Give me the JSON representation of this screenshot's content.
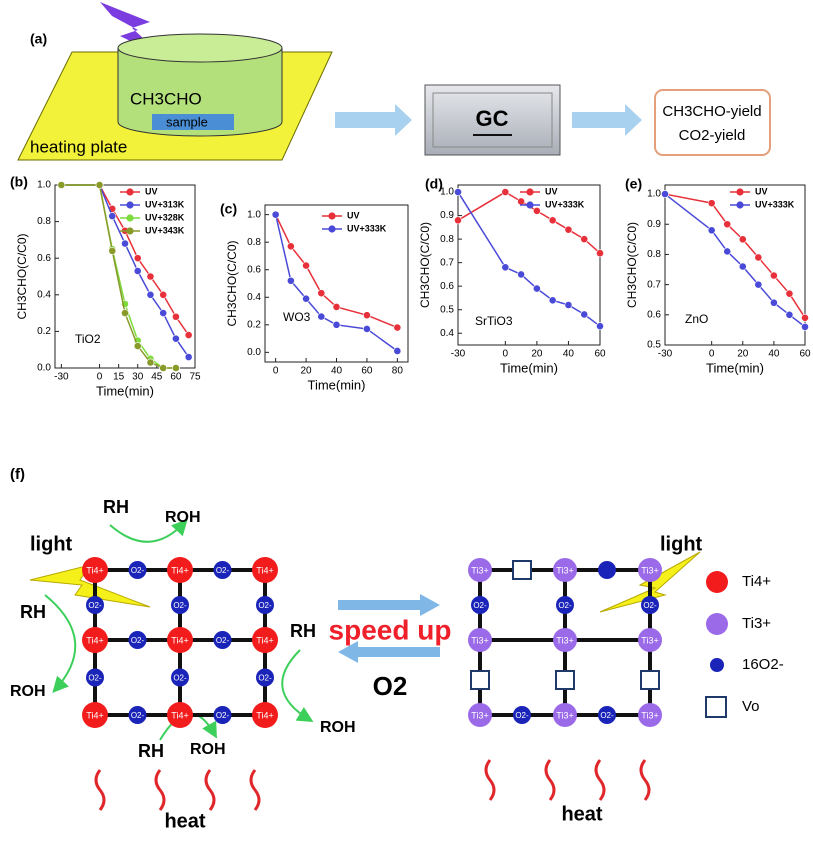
{
  "panel_a": {
    "label": "(a)",
    "reactant": "CH3CHO",
    "sample": "sample",
    "plate": "heating plate",
    "instrument": "GC",
    "outputs": [
      "CH3CHO-yield",
      "CO2-yield"
    ]
  },
  "chart_data": [
    {
      "type": "line",
      "label": "(b)",
      "xlabel": "Time(min)",
      "ylabel": "CH3CHO(C/C0)",
      "annotation": "TiO2",
      "x": [
        -30,
        0,
        10,
        20,
        30,
        40,
        50,
        60,
        70
      ],
      "series": [
        {
          "name": "UV",
          "color": "#e8303a",
          "values": [
            1.0,
            1.0,
            0.87,
            0.75,
            0.6,
            0.5,
            0.4,
            0.28,
            0.18
          ]
        },
        {
          "name": "UV+313K",
          "color": "#4a4ad8",
          "values": [
            1.0,
            1.0,
            0.83,
            0.68,
            0.53,
            0.4,
            0.3,
            0.16,
            0.06
          ]
        },
        {
          "name": "UV+328K",
          "color": "#7ddc3c",
          "values": [
            1.0,
            1.0,
            0.65,
            0.35,
            0.15,
            0.05,
            0.0,
            0.0,
            null
          ]
        },
        {
          "name": "UV+343K",
          "color": "#8a9a2a",
          "values": [
            1.0,
            1.0,
            0.64,
            0.3,
            0.12,
            0.03,
            0.0,
            0.0,
            null
          ]
        }
      ],
      "xlim": [
        -35,
        75
      ],
      "xticks": [
        -30,
        0,
        15,
        30,
        45,
        60,
        75
      ],
      "ylim": [
        0,
        1.0
      ],
      "yticks": [
        {
          "value": 0,
          "label": "0.0"
        },
        {
          "value": 0.2,
          "label": "0.2"
        },
        {
          "value": 0.4,
          "label": "0.4"
        },
        {
          "value": 0.6,
          "label": "0.6"
        },
        {
          "value": 0.8,
          "label": "0.8"
        },
        {
          "value": 1.0,
          "label": "1.0"
        }
      ],
      "legend": "upper right"
    },
    {
      "type": "line",
      "label": "(c)",
      "xlabel": "Time(min)",
      "ylabel": "CH3CHO(C/C0)",
      "annotation": "WO3",
      "x": [
        0,
        10,
        20,
        30,
        40,
        60,
        80
      ],
      "series": [
        {
          "name": "UV",
          "color": "#e8303a",
          "values": [
            1.0,
            0.77,
            0.63,
            0.43,
            0.33,
            0.27,
            0.18
          ]
        },
        {
          "name": "UV+333K",
          "color": "#4a4ad8",
          "values": [
            1.0,
            0.52,
            0.39,
            0.26,
            0.2,
            0.17,
            0.01
          ]
        }
      ],
      "xlim": [
        -7,
        87
      ],
      "xticks": [
        0,
        20,
        40,
        60,
        80
      ],
      "ylim": [
        -0.07,
        1.07
      ],
      "yticks": [
        {
          "value": 0,
          "label": "0.0"
        },
        {
          "value": 0.2,
          "label": "0.2"
        },
        {
          "value": 0.4,
          "label": "0.4"
        },
        {
          "value": 0.6,
          "label": "0.6"
        },
        {
          "value": 0.8,
          "label": "0.8"
        },
        {
          "value": 1.0,
          "label": "1.0"
        }
      ],
      "legend": "upper right"
    },
    {
      "type": "line",
      "label": "(d)",
      "xlabel": "Time(min)",
      "ylabel": "CH3CHO(C/C0)",
      "annotation": "SrTiO3",
      "x": [
        -30,
        0,
        10,
        20,
        30,
        40,
        50,
        60
      ],
      "series": [
        {
          "name": "UV",
          "color": "#e8303a",
          "values": [
            0.88,
            1.0,
            0.96,
            0.92,
            0.88,
            0.84,
            0.8,
            0.74
          ]
        },
        {
          "name": "UV+333K",
          "color": "#4a4ad8",
          "values": [
            1.0,
            0.68,
            0.65,
            0.59,
            0.54,
            0.52,
            0.48,
            0.43
          ]
        }
      ],
      "xlim": [
        -30,
        60
      ],
      "xticks": [
        -30,
        0,
        20,
        40,
        60
      ],
      "ylim": [
        0.35,
        1.03
      ],
      "yticks": [
        0.4,
        0.5,
        0.6,
        0.7,
        0.8,
        0.9,
        {
          "value": 1.0,
          "label": "1.0"
        }
      ],
      "legend": "upper right"
    },
    {
      "type": "line",
      "label": "(e)",
      "xlabel": "Time(min)",
      "ylabel": "CH3CHO(C/C0)",
      "annotation": "ZnO",
      "x": [
        -30,
        0,
        10,
        20,
        30,
        40,
        50,
        60
      ],
      "series": [
        {
          "name": "UV",
          "color": "#e8303a",
          "values": [
            1.0,
            0.97,
            0.9,
            0.85,
            0.79,
            0.73,
            0.67,
            0.59
          ]
        },
        {
          "name": "UV+333K",
          "color": "#4a4ad8",
          "values": [
            1.0,
            0.88,
            0.81,
            0.76,
            0.7,
            0.64,
            0.6,
            0.56
          ]
        }
      ],
      "xlim": [
        -30,
        60
      ],
      "xticks": [
        -30,
        0,
        20,
        40,
        60
      ],
      "ylim": [
        0.5,
        1.03
      ],
      "yticks": [
        0.5,
        0.6,
        0.7,
        0.8,
        0.9,
        {
          "value": 1.0,
          "label": "1.0"
        }
      ],
      "legend": "upper right"
    }
  ],
  "panel_f": {
    "label": "(f)",
    "light": [
      "light",
      "light"
    ],
    "left_ti": [
      "Ti4+",
      "Ti4+",
      "Ti4+",
      "Ti4+",
      "Ti4+",
      "Ti4+",
      "Ti4+",
      "Ti4+",
      "Ti4+"
    ],
    "left_o": [
      "O2-",
      "O2-",
      "O2-",
      "O2-",
      "O2-",
      "O2-",
      "O2-",
      "O2-",
      "O2-",
      "O2-",
      "O2-",
      "O2-"
    ],
    "right_ti": [
      "Ti3+",
      "Ti3+",
      "Ti3+",
      "Ti3+",
      "Ti3+",
      "Ti3+",
      "Ti3+",
      "Ti3+",
      "Ti3+"
    ],
    "right_o": [
      "O2-",
      "O2-",
      "O2-",
      "O2-",
      "O2-"
    ],
    "reactants": [
      "RH",
      "RH",
      "RH",
      "RH"
    ],
    "products": [
      "ROH",
      "ROH",
      "ROH",
      "ROH"
    ],
    "forward": "speed up",
    "reverse": "O2",
    "heat": [
      "heat",
      "heat"
    ],
    "legend": [
      "Ti4+",
      "Ti3+",
      "16O2-",
      "Vo"
    ]
  }
}
